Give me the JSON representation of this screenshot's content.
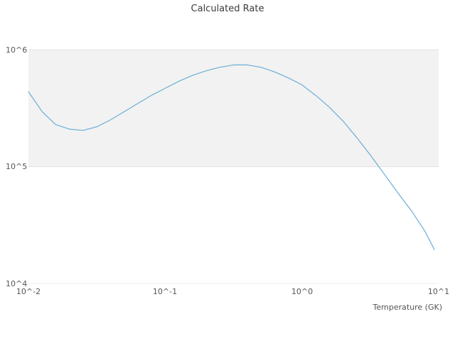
{
  "title": "Calculated Rate",
  "axes": {
    "x_ticks": [
      "10^-2",
      "10^-1",
      "10^0",
      "10^1"
    ],
    "y_ticks": [
      "10^4",
      "10^5",
      "10^6"
    ],
    "xlabel": "Temperature (GK)"
  },
  "colors": {
    "line": "#6baed6",
    "band_fill": "#f2f2f2",
    "grid": "#e2e2e2",
    "grid_light": "#ededed"
  },
  "chart_data": {
    "type": "line",
    "title": "Calculated Rate",
    "xlabel": "Temperature (GK)",
    "ylabel": "",
    "x_scale": "log",
    "y_scale": "log",
    "xlim": [
      0.01,
      10
    ],
    "ylim": [
      10000,
      1000000
    ],
    "x_tick_values": [
      0.01,
      0.1,
      1,
      10
    ],
    "y_tick_values": [
      10000,
      100000,
      1000000
    ],
    "legend": "none",
    "grid": "horizontal-decades",
    "band": {
      "y_from": 100000,
      "y_to": 1000000
    },
    "series": [
      {
        "name": "calculated-rate",
        "points": [
          [
            0.01,
            437000
          ],
          [
            0.0126,
            295000
          ],
          [
            0.0158,
            229000
          ],
          [
            0.02,
            209000
          ],
          [
            0.0251,
            204000
          ],
          [
            0.0316,
            219000
          ],
          [
            0.0398,
            251000
          ],
          [
            0.0501,
            295000
          ],
          [
            0.0631,
            347000
          ],
          [
            0.0794,
            407000
          ],
          [
            0.1,
            468000
          ],
          [
            0.126,
            537000
          ],
          [
            0.158,
            603000
          ],
          [
            0.2,
            661000
          ],
          [
            0.251,
            708000
          ],
          [
            0.316,
            741000
          ],
          [
            0.398,
            741000
          ],
          [
            0.501,
            708000
          ],
          [
            0.631,
            646000
          ],
          [
            0.794,
            575000
          ],
          [
            1.0,
            501000
          ],
          [
            1.26,
            407000
          ],
          [
            1.58,
            324000
          ],
          [
            2.0,
            245000
          ],
          [
            2.51,
            178000
          ],
          [
            3.16,
            126000
          ],
          [
            3.98,
            87000
          ],
          [
            5.01,
            60000
          ],
          [
            6.31,
            42000
          ],
          [
            7.94,
            28000
          ],
          [
            9.3,
            19500
          ]
        ]
      }
    ]
  }
}
